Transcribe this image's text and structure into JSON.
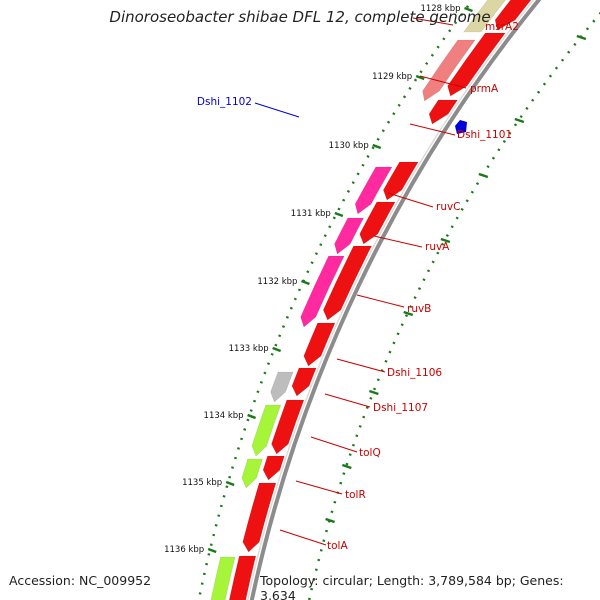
{
  "title": "Dinoroseobacter shibae DFL 12, complete genome",
  "accession_line": "Accession: NC_009952",
  "stats_line": "Topology: circular; Length: 3,789,584 bp; Genes: 3,634",
  "colors": {
    "backbone": "#8c8c8c",
    "cds_forward": "#ee1111",
    "ruv_genes": "#ff2aa0",
    "tol_genes": "#a6f53a",
    "msrA2_gene": "#dcd6a4",
    "prmA_gene": "#f08080",
    "Dshi_1107_gene": "#bdbdbd",
    "Dshi_1102_feature": "#0000dd",
    "ticks": "#1a7a1a",
    "gene_labels": "#cc0000"
  },
  "scale_kbp": [
    "1128 kbp",
    "1129 kbp",
    "1130 kbp",
    "1131 kbp",
    "1132 kbp",
    "1133 kbp",
    "1134 kbp",
    "1135 kbp",
    "1136 kbp"
  ],
  "gene_labels": [
    "msrA2",
    "prmA",
    "Dshi_1101",
    "ruvC",
    "ruvA",
    "ruvB",
    "Dshi_1106",
    "Dshi_1107",
    "tolQ",
    "tolR",
    "tolA"
  ],
  "feature_label": "Dshi_1102"
}
